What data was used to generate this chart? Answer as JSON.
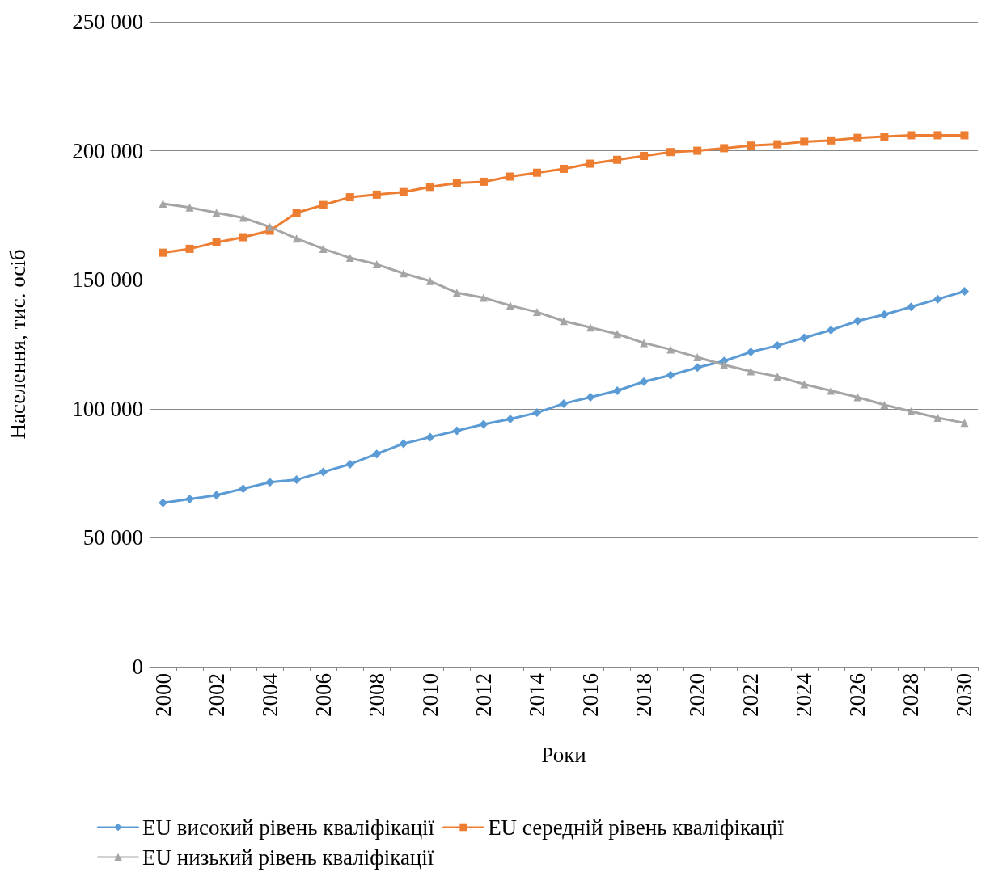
{
  "chart_data": {
    "type": "line",
    "xlabel": "Роки",
    "ylabel": "Населення, тис. осіб",
    "categories": [
      "2000",
      null,
      "2002",
      null,
      "2004",
      null,
      "2006",
      null,
      "2008",
      null,
      "2010",
      null,
      "2012",
      null,
      "2014",
      null,
      "2016",
      null,
      "2018",
      null,
      "2020",
      null,
      "2022",
      null,
      "2024",
      null,
      "2026",
      null,
      "2028",
      null,
      "2030"
    ],
    "series": [
      {
        "name": "EU високий рівень кваліфікації",
        "color": "#5b9bd5",
        "marker": "diamond",
        "values": [
          63500,
          65000,
          66500,
          69000,
          71500,
          72500,
          75500,
          78500,
          82500,
          86500,
          89000,
          91500,
          94000,
          96000,
          98500,
          102000,
          104500,
          107000,
          110500,
          113000,
          116000,
          118500,
          122000,
          124500,
          127500,
          130500,
          134000,
          136500,
          139500,
          142500,
          145500
        ]
      },
      {
        "name": "EU середній рівень кваліфікації",
        "color": "#ed7d31",
        "marker": "square",
        "values": [
          160500,
          162000,
          164500,
          166500,
          169000,
          176000,
          179000,
          182000,
          183000,
          184000,
          186000,
          187500,
          188000,
          190000,
          191500,
          193000,
          195000,
          196500,
          198000,
          199500,
          200000,
          201000,
          202000,
          202500,
          203500,
          204000,
          205000,
          205500,
          206000,
          206000,
          206000
        ]
      },
      {
        "name": "EU низький рівень кваліфікації",
        "color": "#a5a5a5",
        "marker": "triangle",
        "values": [
          179500,
          178000,
          176000,
          174000,
          170500,
          166000,
          162000,
          158500,
          156000,
          152500,
          149500,
          145000,
          143000,
          140000,
          137500,
          134000,
          131500,
          129000,
          125500,
          123000,
          120000,
          117000,
          114500,
          112500,
          109500,
          107000,
          104500,
          101500,
          99000,
          96500,
          94500
        ]
      }
    ],
    "ylim": [
      0,
      250000
    ],
    "yticks": [
      0,
      {
        "value": 50000,
        "label": "50 000"
      },
      {
        "value": 100000,
        "label": "100 000"
      },
      {
        "value": 150000,
        "label": "150 000"
      },
      {
        "value": 200000,
        "label": "200 000"
      },
      {
        "value": 250000,
        "label": "250 000"
      }
    ],
    "grid": "y",
    "legend": "bottom",
    "line_style": "solid"
  }
}
